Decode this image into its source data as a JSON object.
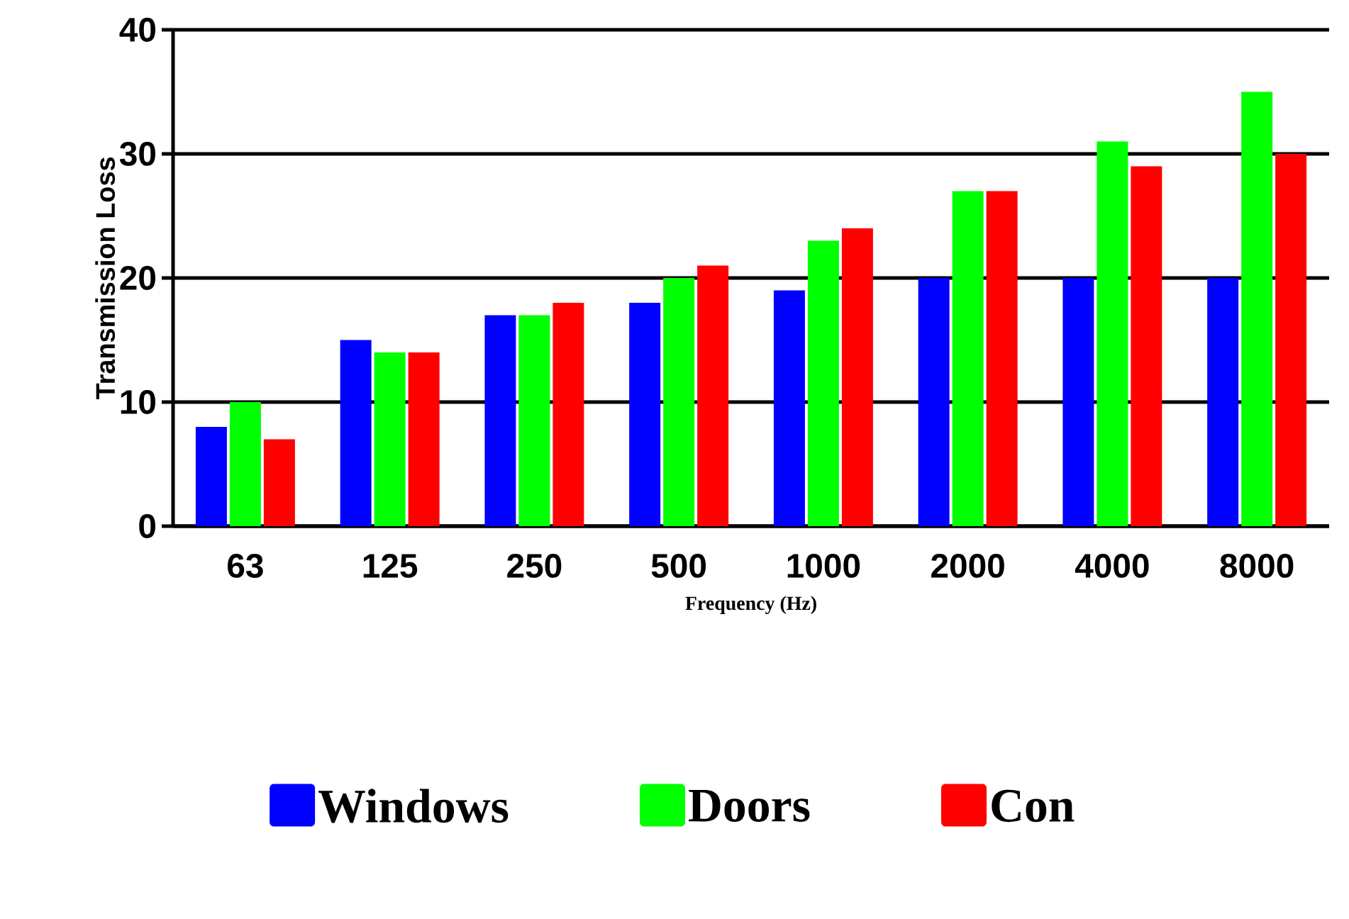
{
  "chart_data": {
    "type": "bar",
    "xlabel": "Frequency (Hz)",
    "ylabel": "Transmission Loss",
    "categories": [
      "63",
      "125",
      "250",
      "500",
      "1000",
      "2000",
      "4000",
      "8000"
    ],
    "series": [
      {
        "name": "Windows",
        "color": "#0000ff",
        "values": [
          8,
          15,
          17,
          18,
          19,
          20,
          20,
          20
        ]
      },
      {
        "name": "Doors",
        "color": "#00ff00",
        "values": [
          10,
          14,
          17,
          20,
          23,
          27,
          31,
          35
        ]
      },
      {
        "name": "Con",
        "color": "#ff0000",
        "values": [
          7,
          14,
          18,
          21,
          24,
          27,
          29,
          30
        ]
      }
    ],
    "ylim": [
      0,
      40
    ],
    "yticks": [
      0,
      10,
      20,
      30,
      40
    ],
    "grid": "y",
    "legend": "bottom"
  }
}
